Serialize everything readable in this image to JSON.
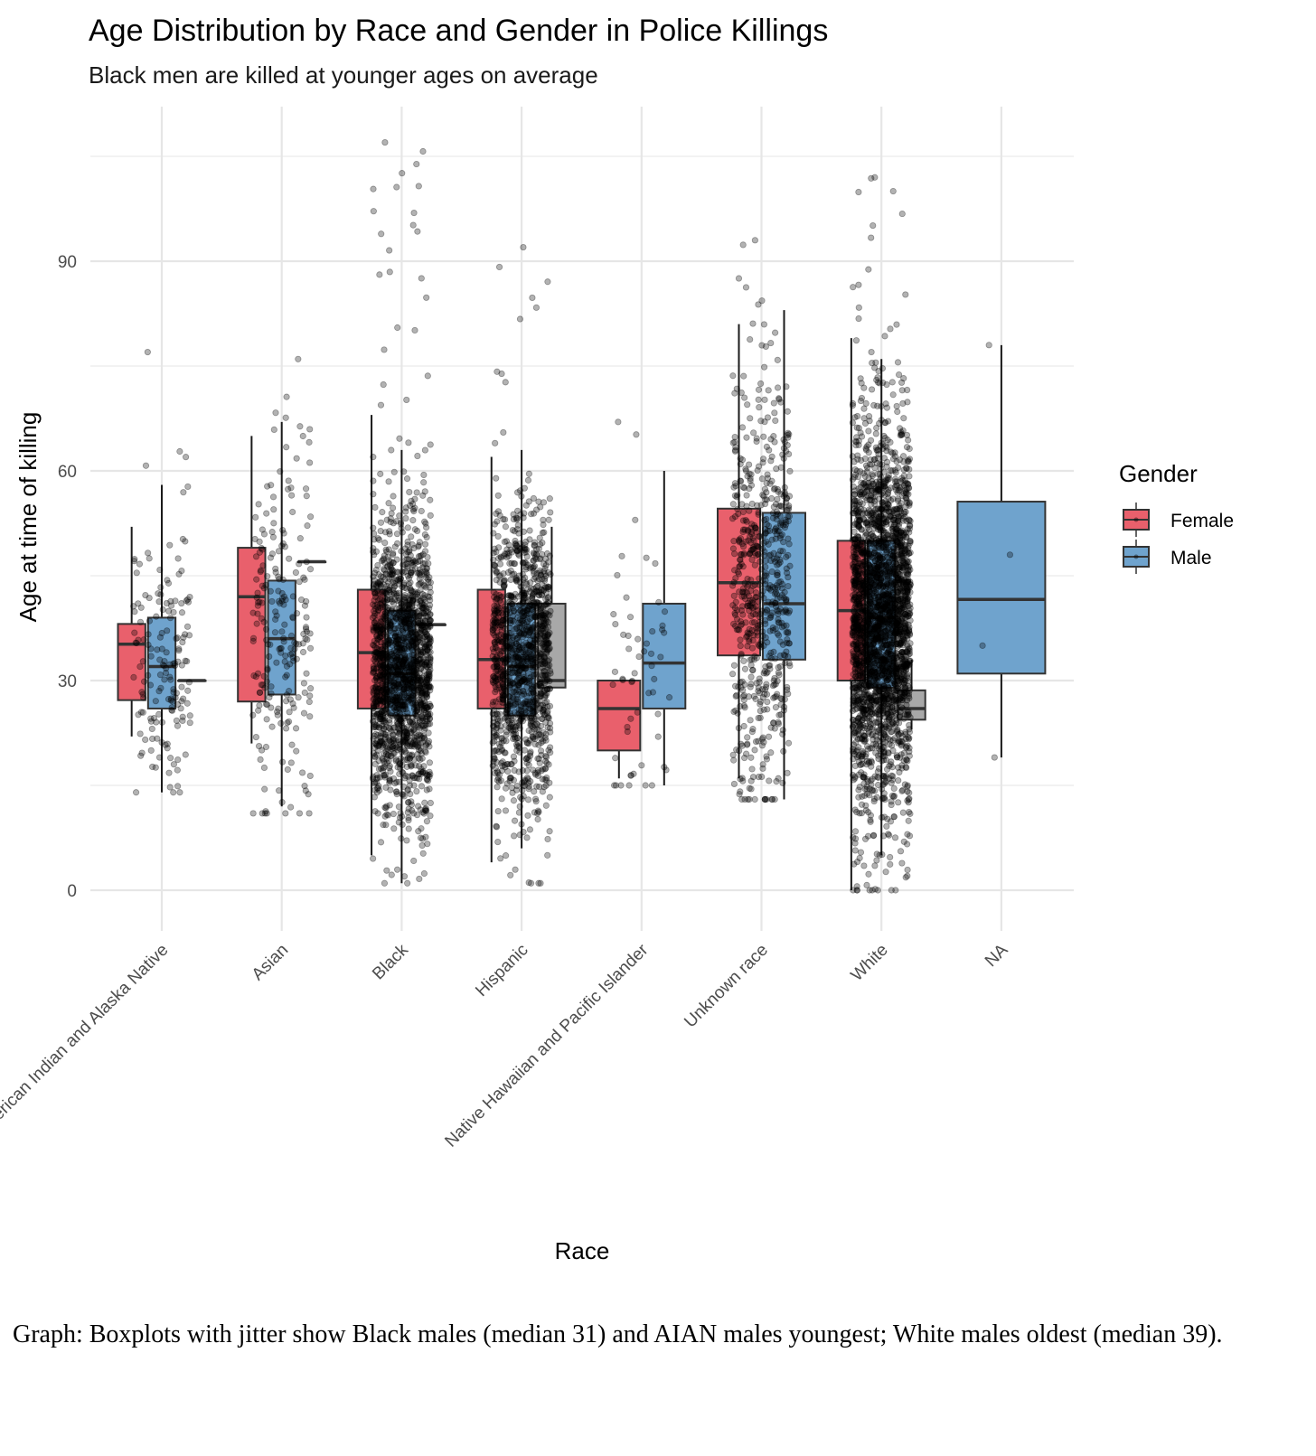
{
  "chart_data": {
    "type": "boxplot",
    "title": "Age Distribution by Race and Gender in Police Killings",
    "subtitle": "Black men are killed at younger ages on average",
    "xlabel": "Race",
    "ylabel": "Age at time of killing",
    "ylim": [
      -3,
      110
    ],
    "yticks": [
      0,
      30,
      60,
      90
    ],
    "yminor": [
      15,
      45,
      75,
      105
    ],
    "categories": [
      "American Indian and Alaska Native",
      "Asian",
      "Black",
      "Hispanic",
      "Native Hawaiian and Pacific Islander",
      "Unknown race",
      "White",
      "NA"
    ],
    "legend": {
      "title": "Gender",
      "position": "right",
      "entries": [
        "Female",
        "Male"
      ]
    },
    "colors": {
      "Female": "#E9606C",
      "Male": "#6FA3CD",
      "NA": "#A8A8A8",
      "stroke": "#333333"
    },
    "boxes": [
      {
        "race": 0,
        "gender": "Female",
        "lo": 22,
        "q1": 27.2,
        "median": 35.2,
        "q3": 38.1,
        "hi": 52
      },
      {
        "race": 0,
        "gender": "Male",
        "lo": 14,
        "q1": 26,
        "median": 32,
        "q3": 39,
        "hi": 58
      },
      {
        "race": 0,
        "gender": "NA",
        "lo": 30,
        "q1": 30,
        "median": 30,
        "q3": 30,
        "hi": 30
      },
      {
        "race": 1,
        "gender": "Female",
        "lo": 21,
        "q1": 27,
        "median": 42,
        "q3": 49,
        "hi": 65
      },
      {
        "race": 1,
        "gender": "Male",
        "lo": 12,
        "q1": 28,
        "median": 36,
        "q3": 44.3,
        "hi": 67
      },
      {
        "race": 1,
        "gender": "NA",
        "lo": 47,
        "q1": 47,
        "median": 47,
        "q3": 47,
        "hi": 47
      },
      {
        "race": 2,
        "gender": "Female",
        "lo": 5,
        "q1": 26,
        "median": 34,
        "q3": 43,
        "hi": 68
      },
      {
        "race": 2,
        "gender": "Male",
        "lo": 1,
        "q1": 25,
        "median": 31,
        "q3": 40,
        "hi": 63
      },
      {
        "race": 2,
        "gender": "NA",
        "lo": 38,
        "q1": 38,
        "median": 38,
        "q3": 38,
        "hi": 38
      },
      {
        "race": 3,
        "gender": "Female",
        "lo": 4,
        "q1": 26,
        "median": 33,
        "q3": 43,
        "hi": 62
      },
      {
        "race": 3,
        "gender": "Male",
        "lo": 6,
        "q1": 25,
        "median": 32,
        "q3": 41,
        "hi": 63
      },
      {
        "race": 3,
        "gender": "NA",
        "lo": 29,
        "q1": 29,
        "median": 30,
        "q3": 41,
        "hi": 52
      },
      {
        "race": 4,
        "gender": "Female",
        "lo": 16,
        "q1": 20,
        "median": 26,
        "q3": 30,
        "hi": 30
      },
      {
        "race": 4,
        "gender": "Male",
        "lo": 15,
        "q1": 26,
        "median": 32.5,
        "q3": 41,
        "hi": 60
      },
      {
        "race": 5,
        "gender": "Female",
        "lo": 16,
        "q1": 33.6,
        "median": 44,
        "q3": 54.6,
        "hi": 81
      },
      {
        "race": 5,
        "gender": "Male",
        "lo": 13,
        "q1": 33,
        "median": 41,
        "q3": 54,
        "hi": 83
      },
      {
        "race": 6,
        "gender": "Female",
        "lo": 0,
        "q1": 30,
        "median": 40,
        "q3": 50,
        "hi": 79
      },
      {
        "race": 6,
        "gender": "Male",
        "lo": 5,
        "q1": 29,
        "median": 39,
        "q3": 50,
        "hi": 76
      },
      {
        "race": 6,
        "gender": "NA",
        "lo": 23,
        "q1": 24.4,
        "median": 26,
        "q3": 28.6,
        "hi": 33
      },
      {
        "race": 7,
        "gender": "Male",
        "lo": 19,
        "q1": 31,
        "median": 41.6,
        "q3": 55.6,
        "hi": 78
      }
    ],
    "jitter_points": [
      {
        "race": 0,
        "count": 160,
        "center": 33,
        "spread": 10,
        "min": 14,
        "max": 77
      },
      {
        "race": 1,
        "count": 220,
        "center": 37,
        "spread": 12,
        "min": 11,
        "max": 76
      },
      {
        "race": 2,
        "count": 1800,
        "center": 32,
        "spread": 10,
        "min": 1,
        "max": 107
      },
      {
        "race": 3,
        "count": 1300,
        "center": 33,
        "spread": 10,
        "min": 1,
        "max": 92
      },
      {
        "race": 4,
        "count": 55,
        "center": 32,
        "spread": 11,
        "min": 15,
        "max": 67
      },
      {
        "race": 5,
        "count": 650,
        "center": 43,
        "spread": 14,
        "min": 13,
        "max": 93
      },
      {
        "race": 6,
        "count": 2800,
        "center": 39,
        "spread": 13,
        "min": 0,
        "max": 102
      },
      {
        "race": 7,
        "values": [
          78,
          48,
          35,
          19
        ]
      }
    ]
  },
  "caption": "Graph: Boxplots with jitter show Black males (median 31) and AIAN males youngest; White males oldest (median 39)."
}
